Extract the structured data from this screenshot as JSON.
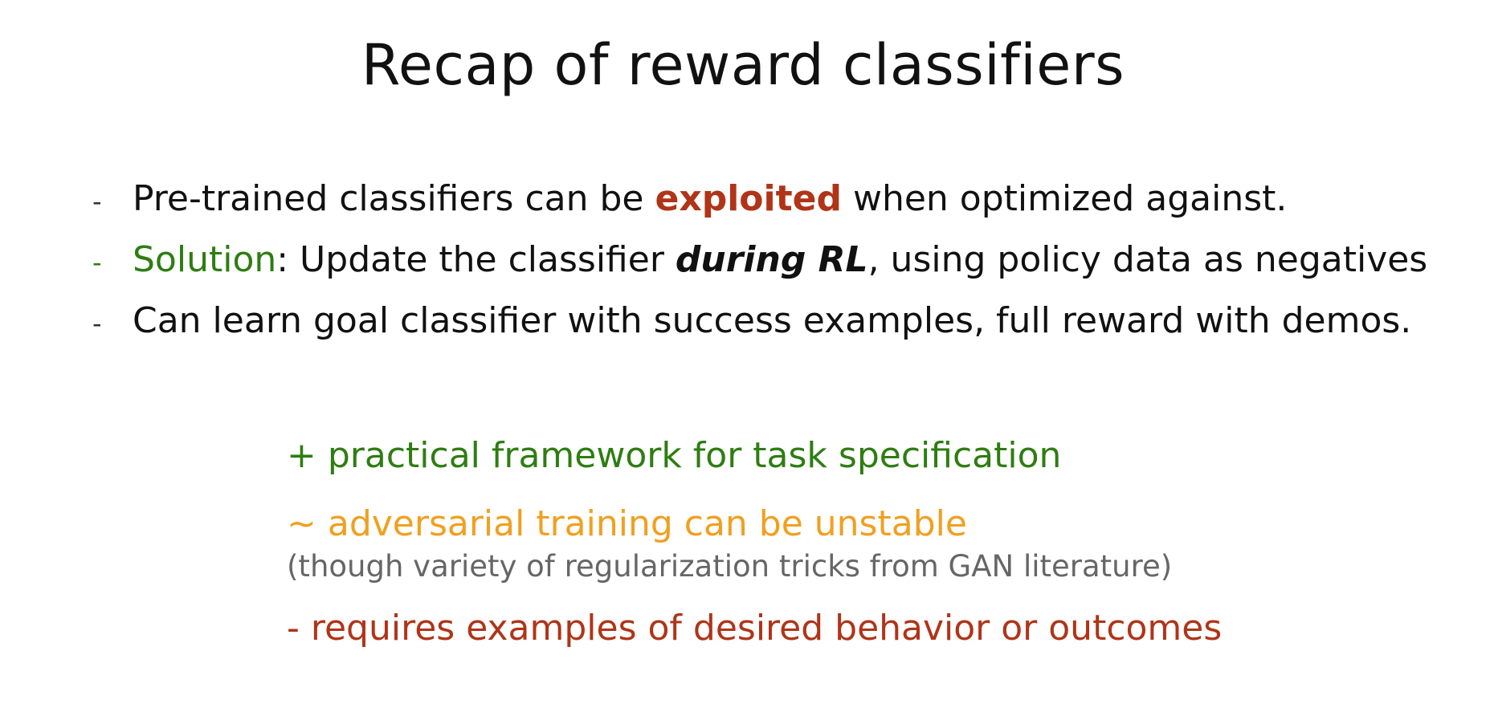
{
  "slide": {
    "title": "Recap of reward classifiers",
    "bullets": [
      {
        "dash": "-",
        "pre": "Pre-trained classifiers can be ",
        "highlight": "exploited",
        "post": " when optimized against."
      },
      {
        "dash": "-",
        "highlight": "Solution",
        "mid": ": Update the classifier ",
        "emphasis": "during RL",
        "post": ", using policy data as negatives"
      },
      {
        "dash": "-",
        "text": "Can learn goal classifier with success examples, full reward with demos."
      }
    ],
    "points": {
      "pro": "+ practical framework for task specification",
      "neutral": "~ adversarial training can be unstable",
      "neutral_note": "(though variety of regularization tricks from GAN literature)",
      "con": "- requires examples of desired behavior or outcomes"
    },
    "colors": {
      "red": "#b03418",
      "green": "#2e7d12",
      "orange": "#f0a020",
      "gray": "#666666"
    }
  }
}
